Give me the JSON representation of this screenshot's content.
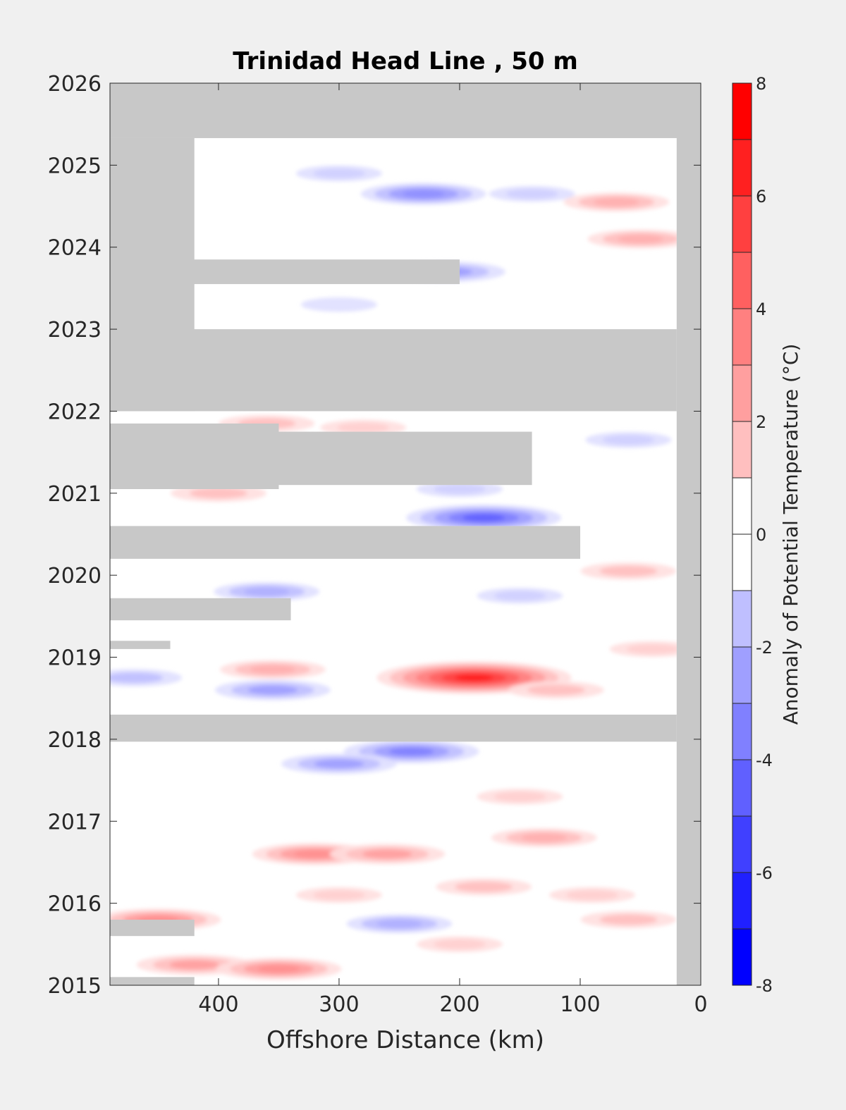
{
  "chart_data": {
    "type": "heatmap",
    "title": "Trinidad Head Line , 50 m",
    "xlabel": "Offshore Distance (km)",
    "ylabel": "",
    "xlim": [
      490,
      0
    ],
    "ylim": [
      2015,
      2026
    ],
    "x_reversed": true,
    "xticks": [
      400,
      300,
      200,
      100,
      0
    ],
    "yticks": [
      2015,
      2016,
      2017,
      2018,
      2019,
      2020,
      2021,
      2022,
      2023,
      2024,
      2025,
      2026
    ],
    "colorbar": {
      "label": "Anomaly of Potential Temperature (°C)",
      "range": [
        -8,
        8
      ],
      "ticks": [
        -8,
        -6,
        -4,
        -2,
        0,
        2,
        4,
        6,
        8
      ],
      "levels": [
        -8,
        -7,
        -6,
        -5,
        -4,
        -3,
        -2,
        -1,
        0,
        1,
        2,
        3,
        4,
        5,
        6,
        7,
        8
      ],
      "colormap": "blue-white-red",
      "colors": {
        "negative": "#0000ff",
        "zero": "#ffffff",
        "positive": "#ff0000",
        "no_data": "#c8c8c8"
      }
    },
    "no_data_regions": [
      {
        "x_range": [
          490,
          0
        ],
        "t_range": [
          2025.33,
          2026.0
        ]
      },
      {
        "x_range": [
          20,
          0
        ],
        "t_range": [
          2015.0,
          2026.0
        ]
      },
      {
        "x_range": [
          490,
          420
        ],
        "t_range": [
          2022.0,
          2025.33
        ]
      },
      {
        "x_range": [
          490,
          20
        ],
        "t_range": [
          2022.0,
          2023.0
        ]
      },
      {
        "x_range": [
          490,
          200
        ],
        "t_range": [
          2023.55,
          2023.85
        ]
      },
      {
        "x_range": [
          490,
          350
        ],
        "t_range": [
          2021.05,
          2021.85
        ]
      },
      {
        "x_range": [
          490,
          140
        ],
        "t_range": [
          2021.1,
          2021.75
        ]
      },
      {
        "x_range": [
          490,
          100
        ],
        "t_range": [
          2020.2,
          2020.6
        ]
      },
      {
        "x_range": [
          490,
          20
        ],
        "t_range": [
          2017.97,
          2018.3
        ]
      },
      {
        "x_range": [
          490,
          340
        ],
        "t_range": [
          2019.45,
          2019.72
        ]
      },
      {
        "x_range": [
          490,
          440
        ],
        "t_range": [
          2019.1,
          2019.2
        ]
      },
      {
        "x_range": [
          490,
          420
        ],
        "t_range": [
          2015.6,
          2015.8
        ]
      },
      {
        "x_range": [
          490,
          420
        ],
        "t_range": [
          2015.0,
          2015.1
        ]
      }
    ],
    "anomaly_features": [
      {
        "x": 188,
        "t": 2018.75,
        "value": 7.0
      },
      {
        "x": 355,
        "t": 2018.85,
        "value": 2.5
      },
      {
        "x": 180,
        "t": 2020.7,
        "value": -5.0
      },
      {
        "x": 240,
        "t": 2017.85,
        "value": -4.0
      },
      {
        "x": 300,
        "t": 2017.7,
        "value": -3.0
      },
      {
        "x": 355,
        "t": 2018.6,
        "value": -3.0
      },
      {
        "x": 470,
        "t": 2018.75,
        "value": -2.0
      },
      {
        "x": 360,
        "t": 2019.8,
        "value": -2.5
      },
      {
        "x": 210,
        "t": 2023.7,
        "value": -3.0
      },
      {
        "x": 230,
        "t": 2024.65,
        "value": -3.5
      },
      {
        "x": 300,
        "t": 2024.9,
        "value": -1.5
      },
      {
        "x": 300,
        "t": 2023.3,
        "value": -1.0
      },
      {
        "x": 320,
        "t": 2016.6,
        "value": 3.5
      },
      {
        "x": 260,
        "t": 2016.6,
        "value": 3.0
      },
      {
        "x": 450,
        "t": 2015.8,
        "value": 3.5
      },
      {
        "x": 420,
        "t": 2015.25,
        "value": 3.0
      },
      {
        "x": 350,
        "t": 2015.2,
        "value": 3.5
      },
      {
        "x": 50,
        "t": 2024.1,
        "value": 2.5
      },
      {
        "x": 70,
        "t": 2024.55,
        "value": 2.5
      },
      {
        "x": 130,
        "t": 2016.8,
        "value": 2.5
      },
      {
        "x": 90,
        "t": 2016.1,
        "value": 1.5
      },
      {
        "x": 60,
        "t": 2015.8,
        "value": 2.0
      },
      {
        "x": 400,
        "t": 2021.0,
        "value": 2.0
      },
      {
        "x": 120,
        "t": 2018.6,
        "value": 2.0
      },
      {
        "x": 40,
        "t": 2019.1,
        "value": 1.5
      },
      {
        "x": 60,
        "t": 2020.05,
        "value": 2.0
      },
      {
        "x": 200,
        "t": 2015.5,
        "value": 1.5
      },
      {
        "x": 150,
        "t": 2017.3,
        "value": 1.5
      },
      {
        "x": 300,
        "t": 2016.1,
        "value": 1.5
      },
      {
        "x": 180,
        "t": 2016.2,
        "value": 2.0
      },
      {
        "x": 360,
        "t": 2021.85,
        "value": 2.0
      },
      {
        "x": 280,
        "t": 2021.8,
        "value": 1.5
      },
      {
        "x": 150,
        "t": 2019.75,
        "value": -1.5
      },
      {
        "x": 200,
        "t": 2021.05,
        "value": -1.5
      },
      {
        "x": 250,
        "t": 2015.75,
        "value": -2.5
      },
      {
        "x": 140,
        "t": 2024.65,
        "value": -1.5
      },
      {
        "x": 60,
        "t": 2021.65,
        "value": -1.5
      }
    ]
  }
}
